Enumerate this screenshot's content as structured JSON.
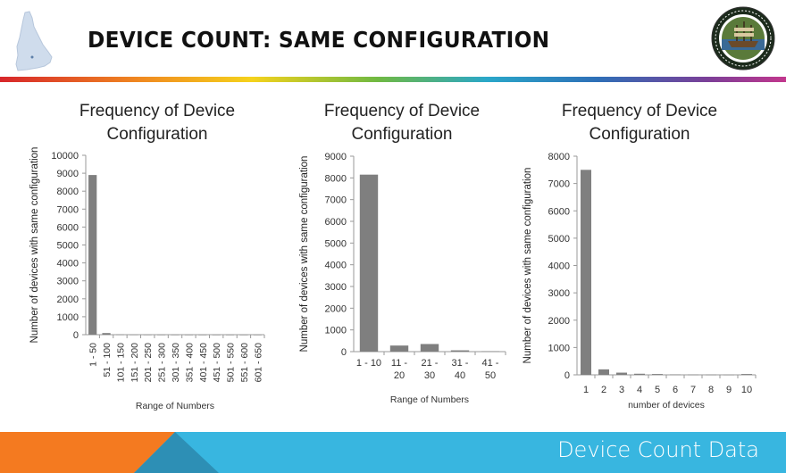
{
  "slide": {
    "title": "DEVICE COUNT:  SAME CONFIGURATION",
    "footer": "Device Count Data",
    "icons": [
      "new-hampshire-state-icon",
      "state-seal-icon"
    ]
  },
  "colors": {
    "bar": "#7f7f7f",
    "axis": "#9a9a9a",
    "footer_blue": "#38b6e0",
    "footer_orange": "#f47a20"
  },
  "chart_data": [
    {
      "type": "bar",
      "title_lines": [
        "Frequency of Device",
        "Configuration"
      ],
      "ylabel": "Number of devices with same configuration",
      "xlabel": "Range of Numbers",
      "ylim": [
        0,
        10000
      ],
      "yticks": [
        0,
        1000,
        2000,
        3000,
        4000,
        5000,
        6000,
        7000,
        8000,
        9000,
        10000
      ],
      "categories": [
        "1 - 50",
        "51 - 100",
        "101 - 150",
        "151 - 200",
        "201 - 250",
        "251 - 300",
        "301 - 350",
        "351 - 400",
        "401 - 450",
        "451 - 500",
        "501 - 550",
        "551 - 600",
        "601 - 650"
      ],
      "values": [
        8900,
        90,
        10,
        5,
        3,
        2,
        2,
        1,
        1,
        1,
        1,
        1,
        1
      ],
      "label_rotate": true,
      "grid": false
    },
    {
      "type": "bar",
      "title_lines": [
        "Frequency of Device",
        "Configuration"
      ],
      "ylabel": "Number of devices with same configuration",
      "xlabel": "Range of Numbers",
      "ylim": [
        0,
        9000
      ],
      "yticks": [
        0,
        1000,
        2000,
        3000,
        4000,
        5000,
        6000,
        7000,
        8000,
        9000
      ],
      "categories": [
        [
          "1 - 10"
        ],
        [
          "11 -",
          "20"
        ],
        [
          "21 -",
          "30"
        ],
        [
          "31 -",
          "40"
        ],
        [
          "41 -",
          "50"
        ]
      ],
      "values": [
        8150,
        280,
        350,
        60,
        20
      ],
      "label_rotate": false,
      "grid": false
    },
    {
      "type": "bar",
      "title_lines": [
        "Frequency of Device",
        "Configuration"
      ],
      "ylabel": "Number of devices with same configuration",
      "xlabel": "number of devices",
      "ylim": [
        0,
        8000
      ],
      "yticks": [
        0,
        1000,
        2000,
        3000,
        4000,
        5000,
        6000,
        7000,
        8000
      ],
      "categories": [
        [
          "1"
        ],
        [
          "2"
        ],
        [
          "3"
        ],
        [
          "4"
        ],
        [
          "5"
        ],
        [
          "6"
        ],
        [
          "7"
        ],
        [
          "8"
        ],
        [
          "9"
        ],
        [
          "10"
        ]
      ],
      "values": [
        7500,
        200,
        80,
        40,
        30,
        15,
        10,
        8,
        6,
        30
      ],
      "label_rotate": false,
      "grid": false
    }
  ]
}
